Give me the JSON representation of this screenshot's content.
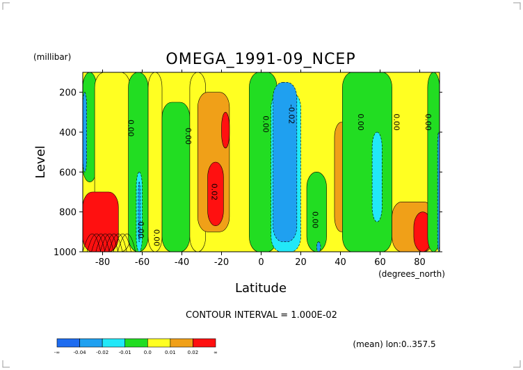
{
  "chart_data": {
    "type": "heatmap",
    "title": "OMEGA_1991-09_NCEP",
    "y_unit": "(millibar)",
    "ylabel": "Level",
    "xlabel": "Latitude",
    "x_unit": "(degrees_north)",
    "xlim": [
      -90,
      90
    ],
    "ylim": [
      1000,
      100
    ],
    "x_ticks": [
      -80,
      -60,
      -40,
      -20,
      0,
      20,
      40,
      60,
      80
    ],
    "x_tick_labels": [
      "-80",
      "-60",
      "-40",
      "-20",
      "0",
      "20",
      "40",
      "60",
      "80"
    ],
    "y_ticks": [
      200,
      400,
      600,
      800,
      1000
    ],
    "y_tick_labels": [
      "200",
      "400",
      "600",
      "800",
      "1000"
    ],
    "contour_interval_text": "CONTOUR INTERVAL = 1.000E-02",
    "footnote": "(mean) lon:0..357.5",
    "colorbar": {
      "boundary_labels": [
        "-∞",
        "-0.04",
        "-0.02",
        "-0.01",
        "0.0",
        "0.01",
        "0.02",
        "∞"
      ],
      "colors": [
        "#1e6cf0",
        "#1fa0f0",
        "#22e8f8",
        "#22dd22",
        "#ffff22",
        "#f0a018",
        "#ff1010"
      ]
    },
    "contour_labels": [
      {
        "text": "0.00",
        "x": -67,
        "y": 380
      },
      {
        "text": "0.00",
        "x": -38,
        "y": 420
      },
      {
        "text": "0.00",
        "x": 1,
        "y": 360
      },
      {
        "text": "-0.02",
        "x": 14,
        "y": 310
      },
      {
        "text": "0.00",
        "x": 49,
        "y": 350
      },
      {
        "text": "0.00",
        "x": 67,
        "y": 350
      },
      {
        "text": "0.00",
        "x": 83,
        "y": 350
      },
      {
        "text": "0.02",
        "x": -25,
        "y": 700
      },
      {
        "text": "0.00",
        "x": 26,
        "y": 840
      },
      {
        "text": "0.00",
        "x": -62,
        "y": 890
      },
      {
        "text": "0.00",
        "x": -54,
        "y": 930
      }
    ],
    "regions": [
      {
        "name": "green-sh-high-lat",
        "value": "0.0 to 0.01",
        "x0": -90,
        "x1": -83,
        "y0": 100,
        "y1": 650
      },
      {
        "name": "blue-sh-edge",
        "value": "-0.02 to -0.01",
        "x0": -90,
        "x1": -88,
        "y0": 200,
        "y1": 600
      },
      {
        "name": "yellow-sh-mid",
        "value": "0.01 to 0.02",
        "x0": -84,
        "x1": -66,
        "y0": 100,
        "y1": 1000
      },
      {
        "name": "green-band-60s",
        "value": "0.0 to 0.01",
        "x0": -67,
        "x1": -57,
        "y0": 100,
        "y1": 1000
      },
      {
        "name": "cyan-band-60s",
        "value": "-0.01 to 0.0",
        "x0": -63,
        "x1": -60,
        "y0": 600,
        "y1": 1000
      },
      {
        "name": "blue-band-60s",
        "value": "-0.02 to -0.01",
        "x0": -62,
        "x1": -61,
        "y0": 650,
        "y1": 950
      },
      {
        "name": "yellow-50s",
        "value": "0.01 to 0.02",
        "x0": -57,
        "x1": -50,
        "y0": 100,
        "y1": 1000
      },
      {
        "name": "green-40s",
        "value": "0.0 to 0.01",
        "x0": -50,
        "x1": -36,
        "y0": 250,
        "y1": 1000
      },
      {
        "name": "yellow-30s",
        "value": "0.01 to 0.02",
        "x0": -36,
        "x1": -28,
        "y0": 100,
        "y1": 1000
      },
      {
        "name": "orange-subtropical-sh",
        "value": "0.02 to 0.03",
        "x0": -32,
        "x1": -16,
        "y0": 200,
        "y1": 900
      },
      {
        "name": "red-sh-upper",
        "value": ">= 0.03",
        "x0": -20,
        "x1": -16,
        "y0": 300,
        "y1": 480
      },
      {
        "name": "red-sh-lower",
        "value": ">= 0.03",
        "x0": -27,
        "x1": -19,
        "y0": 550,
        "y1": 870
      },
      {
        "name": "green-near-eq",
        "value": "0.0 to 0.01",
        "x0": -6,
        "x1": 8,
        "y0": 100,
        "y1": 1000
      },
      {
        "name": "cyan-itcz",
        "value": "-0.01 to 0.0",
        "x0": 5,
        "x1": 20,
        "y0": 200,
        "y1": 1000
      },
      {
        "name": "blue-itcz",
        "value": "-0.02 to -0.01",
        "x0": 6,
        "x1": 18,
        "y0": 150,
        "y1": 950
      },
      {
        "name": "green-25",
        "value": "0.0 to 0.01",
        "x0": 23,
        "x1": 33,
        "y0": 600,
        "y1": 1000
      },
      {
        "name": "blue-30",
        "value": "-0.02 to -0.01",
        "x0": 28,
        "x1": 30,
        "y0": 950,
        "y1": 1000
      },
      {
        "name": "orange-40",
        "value": "0.02 to 0.03",
        "x0": 37,
        "x1": 44,
        "y0": 350,
        "y1": 900
      },
      {
        "name": "green-45-65",
        "value": "0.0 to 0.01",
        "x0": 41,
        "x1": 66,
        "y0": 100,
        "y1": 1000
      },
      {
        "name": "cyan-55",
        "value": "-0.01 to 0.0",
        "x0": 56,
        "x1": 61,
        "y0": 400,
        "y1": 850
      },
      {
        "name": "orange-nh-high-lat",
        "value": "0.02 to 0.03",
        "x0": 66,
        "x1": 87,
        "y0": 750,
        "y1": 1000
      },
      {
        "name": "red-nh-high-lat",
        "value": ">= 0.03",
        "x0": 77,
        "x1": 86,
        "y0": 800,
        "y1": 1000
      },
      {
        "name": "green-85",
        "value": "0.0 to 0.01",
        "x0": 84,
        "x1": 90,
        "y0": 100,
        "y1": 1000
      },
      {
        "name": "blue-nh-edge",
        "value": "-0.02 to -0.01",
        "x0": 89,
        "x1": 90,
        "y0": 400,
        "y1": 1000
      },
      {
        "name": "red-sh-surface",
        "value": ">= 0.03",
        "x0": -90,
        "x1": -72,
        "y0": 700,
        "y1": 1000
      }
    ]
  }
}
